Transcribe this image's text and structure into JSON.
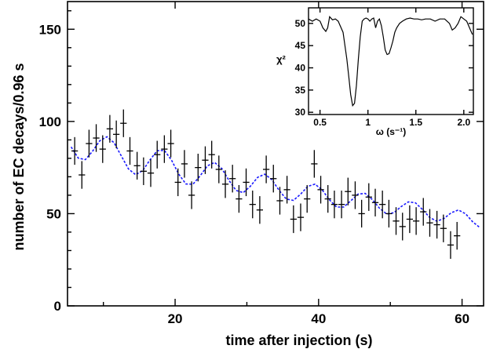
{
  "chart_data": [
    {
      "type": "scatter",
      "title": "",
      "xlabel": "time after injection (s)",
      "ylabel": "number of EC decays/0.96 s",
      "xlim": [
        5,
        63
      ],
      "ylim": [
        0,
        165
      ],
      "xticks": [
        20,
        40,
        60
      ],
      "yticks": [
        0,
        50,
        100,
        150
      ],
      "grid": false,
      "series": [
        {
          "x": [
            6.0,
            7.0,
            8.0,
            9.0,
            9.9,
            10.9,
            11.8,
            12.8,
            13.7,
            14.7,
            15.6,
            16.6,
            17.5,
            18.5,
            19.4,
            20.4,
            21.3,
            22.3,
            23.2,
            24.2,
            25.1,
            26.1,
            27.0,
            28.0,
            28.9,
            29.9,
            30.8,
            31.8,
            32.7,
            33.7,
            34.6,
            35.6,
            36.5,
            37.5,
            38.4,
            39.4,
            40.3,
            41.3,
            42.2,
            43.2,
            44.1,
            45.1,
            46.0,
            47.0,
            47.9,
            48.9,
            49.8,
            50.8,
            51.7,
            52.7,
            53.6,
            54.6,
            55.5,
            56.5,
            57.4,
            58.4,
            59.3
          ],
          "y": [
            84,
            71,
            88,
            91,
            85,
            96,
            93,
            99,
            84,
            76,
            73,
            72,
            82,
            85,
            88,
            67,
            77,
            60,
            75,
            79,
            82,
            74,
            66,
            69,
            58,
            67,
            55,
            52,
            74,
            69,
            57,
            63,
            47,
            48,
            58,
            77,
            63,
            58,
            55,
            55,
            62,
            60,
            50,
            59,
            56,
            55,
            50,
            46,
            43,
            47,
            46,
            51,
            45,
            44,
            42,
            33,
            38
          ],
          "error": 7.5
        },
        {
          "name": "",
          "type": "line",
          "model": "damped-oscillation",
          "x": [
            5.5,
            6.5,
            7.5,
            8.5,
            9.5,
            10.5,
            11.5,
            12.5,
            13.5,
            14.5,
            15.5,
            16.5,
            17.5,
            18.5,
            19.5,
            20.5,
            21.5,
            22.5,
            23.5,
            24.5,
            25.5,
            26.5,
            27.5,
            28.5,
            29.5,
            30.5,
            31.5,
            32.5,
            33.5,
            34.5,
            35.5,
            36.5,
            37.5,
            38.5,
            39.5,
            40.5,
            41.5,
            42.5,
            43.5,
            44.5,
            45.5,
            46.5,
            47.5,
            48.5,
            49.5,
            50.5,
            51.5,
            52.5,
            53.5,
            54.5,
            55.5,
            56.5,
            57.5,
            58.5,
            59.5,
            60.5,
            61.5,
            62.5
          ],
          "y": [
            86.2,
            80.1,
            79.3,
            83.9,
            89.5,
            91.7,
            88.4,
            81.3,
            74.2,
            71.1,
            73.4,
            79.2,
            84.1,
            84.3,
            79.0,
            71.5,
            66.1,
            66.0,
            70.6,
            75.9,
            77.8,
            74.5,
            68.1,
            62.6,
            61.4,
            64.9,
            69.7,
            71.4,
            68.4,
            62.6,
            57.9,
            57.2,
            60.6,
            64.8,
            66.0,
            62.9,
            57.6,
            53.6,
            53.6,
            57.0,
            60.6,
            61.0,
            57.6,
            52.9,
            49.8,
            50.5,
            53.8,
            56.4,
            55.9,
            52.2,
            47.9,
            45.9,
            47.4,
            50.5,
            52.0,
            49.9,
            45.5,
            42.4
          ]
        }
      ]
    },
    {
      "type": "line",
      "title": "",
      "xlabel": "ω (s⁻¹)",
      "ylabel": "χ²",
      "xlim": [
        0.38,
        2.1
      ],
      "ylim": [
        29.5,
        53.5
      ],
      "xticks": [
        0.5,
        1.0,
        1.5,
        2.0
      ],
      "xtick_labels": [
        "0.5",
        "1",
        "1.5",
        "2.0"
      ],
      "yticks": [
        30,
        35,
        40,
        45,
        50
      ],
      "grid": false,
      "series": [
        {
          "name": "",
          "x": [
            0.38,
            0.42,
            0.46,
            0.5,
            0.53,
            0.56,
            0.58,
            0.6,
            0.63,
            0.66,
            0.69,
            0.72,
            0.74,
            0.76,
            0.78,
            0.8,
            0.82,
            0.84,
            0.86,
            0.88,
            0.9,
            0.92,
            0.94,
            0.96,
            0.98,
            1.0,
            1.02,
            1.04,
            1.06,
            1.08,
            1.1,
            1.12,
            1.14,
            1.16,
            1.18,
            1.2,
            1.22,
            1.24,
            1.26,
            1.28,
            1.3,
            1.33,
            1.36,
            1.4,
            1.44,
            1.48,
            1.52,
            1.56,
            1.6,
            1.65,
            1.7,
            1.75,
            1.8,
            1.85,
            1.88,
            1.91,
            1.94,
            1.97,
            2.0,
            2.03,
            2.06,
            2.09
          ],
          "y": [
            51,
            50.5,
            51,
            50.5,
            49,
            48.2,
            49,
            51.5,
            50.8,
            51,
            50.5,
            49,
            48,
            45,
            42,
            38,
            34,
            31.5,
            32,
            36,
            42,
            47,
            50.5,
            51,
            51.2,
            51,
            50.5,
            51,
            51.2,
            49,
            50.5,
            51,
            49.5,
            47,
            44,
            43,
            43.2,
            44.5,
            46,
            48,
            49,
            50,
            50.5,
            51,
            51.2,
            51,
            51,
            50.8,
            51,
            51,
            50.5,
            51,
            51,
            50,
            48.5,
            49,
            50,
            51.5,
            51,
            50.5,
            49,
            47.5
          ]
        }
      ]
    }
  ]
}
